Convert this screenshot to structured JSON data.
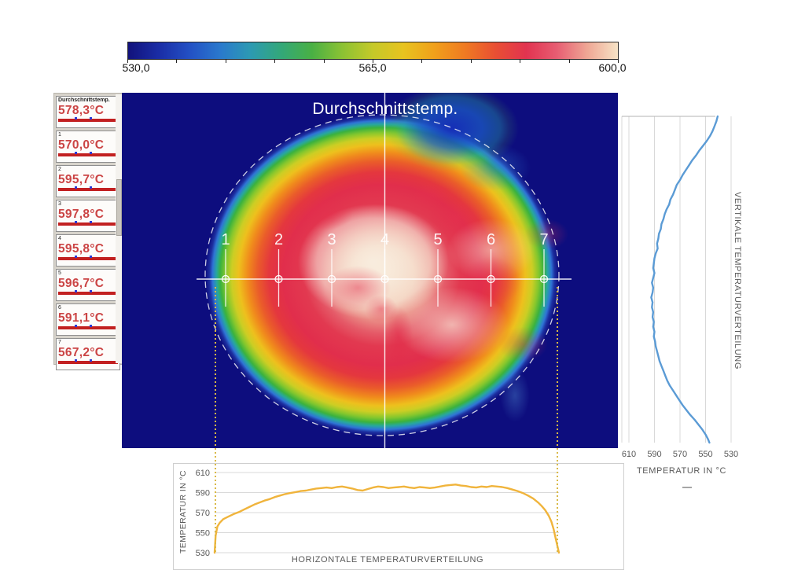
{
  "colorbar": {
    "labels": [
      "530,0",
      "565,0",
      "600,0"
    ],
    "tick_count": 11,
    "gradient": [
      "#12127c",
      "#1a2da6",
      "#2350c4",
      "#2a79cd",
      "#2c9ab2",
      "#33a878",
      "#49b044",
      "#8cc233",
      "#c5c929",
      "#e8c31f",
      "#f0a01b",
      "#ef7a22",
      "#e94f33",
      "#e23350",
      "#e75d72",
      "#efa795",
      "#f6e3c6"
    ]
  },
  "sidebar": {
    "readings": [
      {
        "label": "Durchschnittstemp.",
        "value": "578,3°C",
        "header": true
      },
      {
        "label": "1",
        "value": "570,0°C"
      },
      {
        "label": "2",
        "value": "595,7°C"
      },
      {
        "label": "3",
        "value": "597,8°C"
      },
      {
        "label": "4",
        "value": "595,8°C"
      },
      {
        "label": "5",
        "value": "596,7°C"
      },
      {
        "label": "6",
        "value": "591,1°C"
      },
      {
        "label": "7",
        "value": "567,2°C"
      }
    ]
  },
  "thermal": {
    "title": "Durchschnittstemp.",
    "markers": [
      "1",
      "2",
      "3",
      "4",
      "5",
      "6",
      "7"
    ]
  },
  "chart_data": [
    {
      "type": "line",
      "id": "vertical-profile",
      "title": "VERTIKALE TEMPERATURVERTEILUNG",
      "xlabel": "TEMPERATUR IN °C",
      "x_ticks": [
        610,
        590,
        570,
        550,
        530
      ],
      "x_range": [
        610,
        530
      ],
      "x_axis_reversed": true,
      "grid": true,
      "series": [
        {
          "name": "Vertikale Temperaturverteilung",
          "points": [
            [
              0,
              540.5
            ],
            [
              0.015,
              541.5
            ],
            [
              0.03,
              543
            ],
            [
              0.045,
              544.5
            ],
            [
              0.06,
              546.5
            ],
            [
              0.075,
              549
            ],
            [
              0.09,
              552
            ],
            [
              0.105,
              555
            ],
            [
              0.12,
              557.5
            ],
            [
              0.135,
              560.5
            ],
            [
              0.15,
              563
            ],
            [
              0.165,
              565.5
            ],
            [
              0.18,
              568
            ],
            [
              0.195,
              570
            ],
            [
              0.21,
              572.5
            ],
            [
              0.225,
              574
            ],
            [
              0.24,
              575.5
            ],
            [
              0.255,
              577.5
            ],
            [
              0.27,
              578.5
            ],
            [
              0.285,
              580.5
            ],
            [
              0.3,
              582
            ],
            [
              0.315,
              583
            ],
            [
              0.33,
              584.5
            ],
            [
              0.345,
              585
            ],
            [
              0.36,
              586.5
            ],
            [
              0.375,
              587
            ],
            [
              0.39,
              588
            ],
            [
              0.405,
              587.5
            ],
            [
              0.42,
              589
            ],
            [
              0.435,
              590
            ],
            [
              0.45,
              590.5
            ],
            [
              0.465,
              591
            ],
            [
              0.48,
              590
            ],
            [
              0.495,
              591
            ],
            [
              0.51,
              592
            ],
            [
              0.525,
              591
            ],
            [
              0.54,
              591.5
            ],
            [
              0.555,
              592.5
            ],
            [
              0.57,
              591.5
            ],
            [
              0.585,
              592
            ],
            [
              0.6,
              591
            ],
            [
              0.615,
              591.5
            ],
            [
              0.63,
              590.5
            ],
            [
              0.645,
              591
            ],
            [
              0.66,
              590
            ],
            [
              0.675,
              590.5
            ],
            [
              0.69,
              589.5
            ],
            [
              0.705,
              589
            ],
            [
              0.72,
              588
            ],
            [
              0.735,
              587
            ],
            [
              0.75,
              586
            ],
            [
              0.765,
              584.5
            ],
            [
              0.78,
              583
            ],
            [
              0.795,
              581.5
            ],
            [
              0.81,
              580
            ],
            [
              0.825,
              578
            ],
            [
              0.84,
              575.5
            ],
            [
              0.855,
              573
            ],
            [
              0.87,
              570.5
            ],
            [
              0.885,
              568
            ],
            [
              0.9,
              565
            ],
            [
              0.915,
              562
            ],
            [
              0.93,
              558.5
            ],
            [
              0.945,
              555.5
            ],
            [
              0.96,
              552.5
            ],
            [
              0.975,
              550
            ],
            [
              0.99,
              548
            ],
            [
              1,
              547
            ]
          ]
        }
      ]
    },
    {
      "type": "line",
      "id": "horizontal-profile",
      "title": "HORIZONTALE TEMPERATURVERTEILUNG",
      "ylabel": "TEMPERATUR IN °C",
      "y_ticks": [
        610,
        590,
        570,
        550,
        530
      ],
      "y_range": [
        530,
        610
      ],
      "grid": true,
      "series": [
        {
          "name": "Horizontale Temperaturverteilung",
          "points": [
            [
              0,
              530
            ],
            [
              0.003,
              547
            ],
            [
              0.008,
              556
            ],
            [
              0.015,
              560
            ],
            [
              0.025,
              563.5
            ],
            [
              0.04,
              566
            ],
            [
              0.055,
              568.5
            ],
            [
              0.07,
              570.5
            ],
            [
              0.085,
              573
            ],
            [
              0.1,
              575.5
            ],
            [
              0.115,
              578
            ],
            [
              0.13,
              580
            ],
            [
              0.145,
              582
            ],
            [
              0.16,
              583.5
            ],
            [
              0.175,
              585.5
            ],
            [
              0.19,
              587
            ],
            [
              0.205,
              588.5
            ],
            [
              0.22,
              589.5
            ],
            [
              0.235,
              590.5
            ],
            [
              0.25,
              591.5
            ],
            [
              0.265,
              592
            ],
            [
              0.28,
              593
            ],
            [
              0.295,
              594
            ],
            [
              0.31,
              594.5
            ],
            [
              0.325,
              595
            ],
            [
              0.34,
              594.5
            ],
            [
              0.355,
              595.5
            ],
            [
              0.37,
              596
            ],
            [
              0.385,
              595
            ],
            [
              0.4,
              594
            ],
            [
              0.415,
              592.5
            ],
            [
              0.43,
              592
            ],
            [
              0.445,
              593.5
            ],
            [
              0.46,
              595
            ],
            [
              0.475,
              596
            ],
            [
              0.49,
              595.5
            ],
            [
              0.505,
              594.5
            ],
            [
              0.52,
              595
            ],
            [
              0.535,
              595.5
            ],
            [
              0.55,
              596
            ],
            [
              0.565,
              595
            ],
            [
              0.58,
              594.5
            ],
            [
              0.595,
              595.5
            ],
            [
              0.61,
              595
            ],
            [
              0.625,
              594.5
            ],
            [
              0.64,
              595
            ],
            [
              0.655,
              596
            ],
            [
              0.67,
              597
            ],
            [
              0.685,
              597.5
            ],
            [
              0.7,
              598
            ],
            [
              0.715,
              597
            ],
            [
              0.73,
              596.5
            ],
            [
              0.745,
              595.5
            ],
            [
              0.76,
              595
            ],
            [
              0.775,
              596
            ],
            [
              0.79,
              595.5
            ],
            [
              0.805,
              596.5
            ],
            [
              0.82,
              596
            ],
            [
              0.835,
              595.5
            ],
            [
              0.85,
              594.5
            ],
            [
              0.865,
              593
            ],
            [
              0.88,
              591.5
            ],
            [
              0.895,
              589.5
            ],
            [
              0.91,
              587
            ],
            [
              0.925,
              584
            ],
            [
              0.94,
              580
            ],
            [
              0.95,
              576.5
            ],
            [
              0.96,
              572.5
            ],
            [
              0.97,
              567
            ],
            [
              0.978,
              561
            ],
            [
              0.985,
              553
            ],
            [
              0.99,
              545
            ],
            [
              1,
              530
            ]
          ]
        }
      ]
    }
  ],
  "colors": {
    "background_navy": "#0d0d7e",
    "curve_blue": "#5b9bd5",
    "curve_gold": "#f0b43c",
    "axis_text": "#595959",
    "gridline": "#d9d9d9",
    "plot_border": "#b3b3b3",
    "value_red": "#cb4444",
    "bar_red": "#c22020",
    "dotted_guide": "#d9b946",
    "annotation_white": "#ffffff"
  }
}
